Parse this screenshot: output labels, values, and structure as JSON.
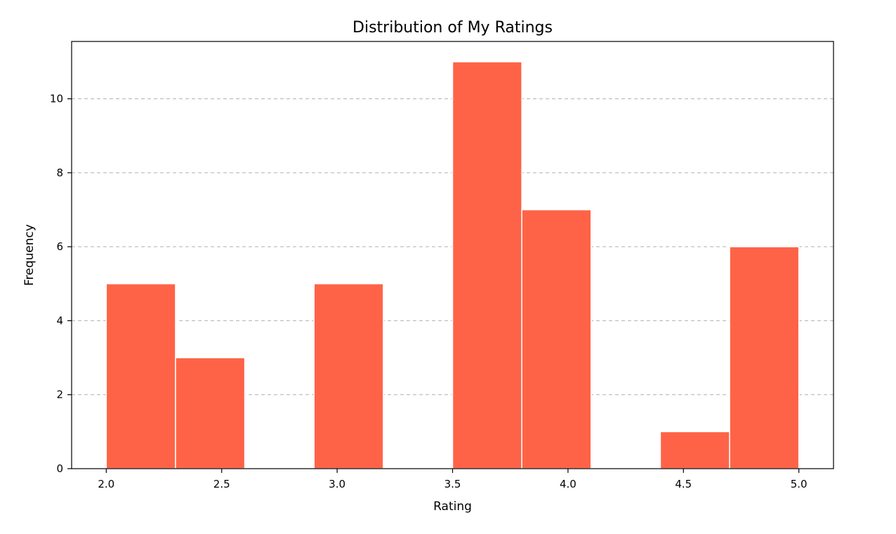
{
  "chart_data": {
    "type": "bar",
    "title": "Distribution of My Ratings",
    "xlabel": "Rating",
    "ylabel": "Frequency",
    "xlim": [
      1.85,
      5.15
    ],
    "ylim": [
      0,
      11.55
    ],
    "xticks": [
      2.0,
      2.5,
      3.0,
      3.5,
      4.0,
      4.5,
      5.0
    ],
    "xtick_labels": [
      "2.0",
      "2.5",
      "3.0",
      "3.5",
      "4.0",
      "4.5",
      "5.0"
    ],
    "yticks": [
      0,
      2,
      4,
      6,
      8,
      10
    ],
    "ytick_labels": [
      "0",
      "2",
      "4",
      "6",
      "8",
      "10"
    ],
    "grid": "y-dashed",
    "bar_color": "#ff6347",
    "bins": [
      {
        "start": 2.0,
        "end": 2.3,
        "value": 5
      },
      {
        "start": 2.3,
        "end": 2.6,
        "value": 3
      },
      {
        "start": 2.6,
        "end": 2.9,
        "value": 0
      },
      {
        "start": 2.9,
        "end": 3.2,
        "value": 5
      },
      {
        "start": 3.2,
        "end": 3.5,
        "value": 0
      },
      {
        "start": 3.5,
        "end": 3.8,
        "value": 11
      },
      {
        "start": 3.8,
        "end": 4.1,
        "value": 7
      },
      {
        "start": 4.1,
        "end": 4.4,
        "value": 0
      },
      {
        "start": 4.4,
        "end": 4.7,
        "value": 1
      },
      {
        "start": 4.7,
        "end": 5.0,
        "value": 6
      }
    ]
  }
}
